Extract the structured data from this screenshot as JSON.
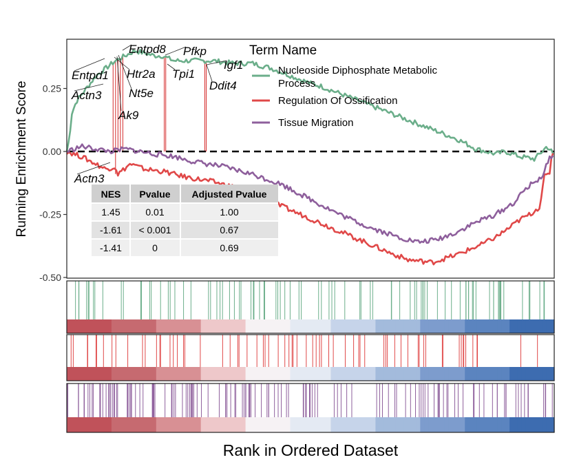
{
  "chart_data": {
    "type": "line",
    "ylabel": "Running Enrichment Score",
    "xlabel": "Rank in Ordered Dataset",
    "ylim": [
      -0.5,
      0.42
    ],
    "y_ticks": [
      0.25,
      0.0,
      -0.25,
      -0.5
    ],
    "y_tick_labels": [
      "0.25",
      "0.00",
      "-0.25",
      "-0.50"
    ],
    "legend": {
      "title": "Term Name",
      "position": "top-right",
      "entries": [
        {
          "line1": "Nucleoside Diphosphate Metabolic",
          "line2": "Process",
          "color": "#6bae8a"
        },
        {
          "line1": "Regulation Of Ossification",
          "line2": "",
          "color": "#e04848"
        },
        {
          "line1": "Tissue Migration",
          "line2": "",
          "color": "#8e5f9c"
        }
      ]
    },
    "series": [
      {
        "name": "Nucleoside Diphosphate Metabolic Process",
        "color": "#6bae8a",
        "x": [
          0,
          0.5,
          1,
          2,
          4,
          6,
          8,
          10,
          12,
          14,
          16,
          18,
          19.5,
          22,
          26,
          30,
          34,
          38,
          40,
          42,
          46,
          50,
          52,
          56,
          60,
          64,
          68,
          72,
          76,
          80,
          84,
          86,
          88,
          90,
          93,
          96,
          97,
          98.5,
          99.5,
          100
        ],
        "y": [
          0.0,
          0.05,
          0.15,
          0.2,
          0.25,
          0.3,
          0.33,
          0.36,
          0.38,
          0.4,
          0.39,
          0.38,
          0.38,
          0.36,
          0.36,
          0.36,
          0.35,
          0.35,
          0.34,
          0.33,
          0.3,
          0.27,
          0.26,
          0.23,
          0.2,
          0.17,
          0.14,
          0.11,
          0.08,
          0.05,
          0.01,
          0.0,
          -0.01,
          0.0,
          -0.02,
          -0.03,
          -0.01,
          0.02,
          0.0,
          -0.03
        ]
      },
      {
        "name": "Regulation Of Ossification",
        "color": "#e04848",
        "x": [
          0,
          3,
          6,
          8,
          10,
          10.5,
          13,
          16,
          20,
          24,
          30,
          36,
          42,
          48,
          54,
          60,
          66,
          70,
          75,
          80,
          85,
          88,
          91,
          93,
          95,
          97,
          98,
          99,
          99.5,
          100
        ],
        "y": [
          0.0,
          -0.02,
          -0.05,
          -0.07,
          -0.06,
          -0.09,
          -0.05,
          -0.07,
          -0.08,
          -0.1,
          -0.12,
          -0.15,
          -0.2,
          -0.25,
          -0.3,
          -0.35,
          -0.4,
          -0.43,
          -0.44,
          -0.41,
          -0.37,
          -0.34,
          -0.3,
          -0.27,
          -0.25,
          -0.22,
          -0.1,
          -0.09,
          -0.01,
          0.0
        ]
      },
      {
        "name": "Tissue Migration",
        "color": "#8e5f9c",
        "x": [
          0,
          3,
          6,
          9,
          12,
          15,
          18,
          22,
          26,
          32,
          38,
          44,
          50,
          56,
          62,
          68,
          72,
          76,
          80,
          84,
          88,
          92,
          94,
          96,
          97.5,
          99,
          100
        ],
        "y": [
          0.0,
          0.02,
          0.01,
          0.0,
          0.01,
          0.0,
          -0.01,
          -0.02,
          -0.04,
          -0.06,
          -0.09,
          -0.13,
          -0.19,
          -0.25,
          -0.3,
          -0.34,
          -0.36,
          -0.35,
          -0.32,
          -0.28,
          -0.25,
          -0.2,
          -0.15,
          -0.12,
          -0.1,
          -0.03,
          0.0
        ]
      }
    ],
    "core_genes": [
      {
        "label": "Entpd8",
        "x": 11.5
      },
      {
        "label": "Pfkp",
        "x": 20
      },
      {
        "label": "Igf1",
        "x": 28.5
      },
      {
        "label": "Entpd1",
        "x": 9.5
      },
      {
        "label": "Htr2a",
        "x": 10.5
      },
      {
        "label": "Tpi1",
        "x": 20
      },
      {
        "label": "Actn3",
        "x": 9.5
      },
      {
        "label": "Nt5e",
        "x": 11
      },
      {
        "label": "Ddit4",
        "x": 28.5
      },
      {
        "label": "Ak9",
        "x": 10
      },
      {
        "label": "Actn3",
        "x": 10,
        "y": -0.09
      }
    ],
    "stats_table": {
      "headers": [
        "NES",
        "Pvalue",
        "Adjusted Pvalue"
      ],
      "rows": [
        [
          "1.45",
          "0.01",
          "1.00"
        ],
        [
          "-1.61",
          "< 0.001",
          "0.67"
        ],
        [
          "-1.41",
          "0",
          "0.69"
        ]
      ]
    },
    "rank_panels": [
      {
        "color": "#6bae8a"
      },
      {
        "color": "#e04848"
      },
      {
        "color": "#8e5f9c"
      }
    ],
    "heat_colors": [
      "#c0525a",
      "#c66a70",
      "#d89094",
      "#eec8ca",
      "#f6f2f4",
      "#e4eaf3",
      "#c6d4ea",
      "#a3bbdc",
      "#7d9ccd",
      "#5b84bf",
      "#3d6cb0"
    ]
  }
}
